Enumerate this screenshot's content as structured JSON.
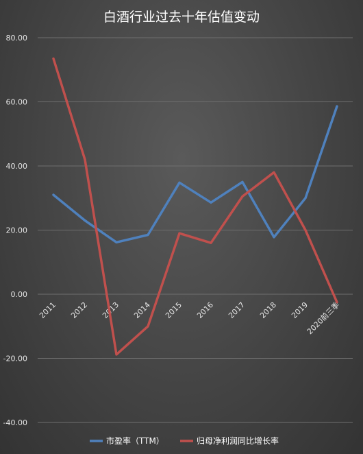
{
  "chart_data": {
    "type": "line",
    "title": "白酒行业过去十年估值变动",
    "xlabel": "",
    "ylabel": "",
    "categories": [
      "2011",
      "2012",
      "2013",
      "2014",
      "2015",
      "2016",
      "2017",
      "2018",
      "2019",
      "2020前三季"
    ],
    "ylim": [
      -40,
      80
    ],
    "yticks": [
      "80.00",
      "60.00",
      "40.00",
      "20.00",
      "0.00",
      "-20.00",
      "-40.00"
    ],
    "grid": true,
    "legend_position": "bottom",
    "series": [
      {
        "name": "市盈率（TTM）",
        "color": "#4f81bd",
        "values": [
          31.0,
          23.0,
          16.2,
          18.5,
          34.8,
          28.6,
          35.0,
          17.8,
          30.0,
          58.6
        ]
      },
      {
        "name": "归母净利润同比增长率",
        "color": "#c0504d",
        "values": [
          73.5,
          42.0,
          -18.8,
          -10.0,
          19.0,
          16.0,
          30.5,
          38.0,
          20.0,
          -2.5
        ]
      }
    ]
  }
}
